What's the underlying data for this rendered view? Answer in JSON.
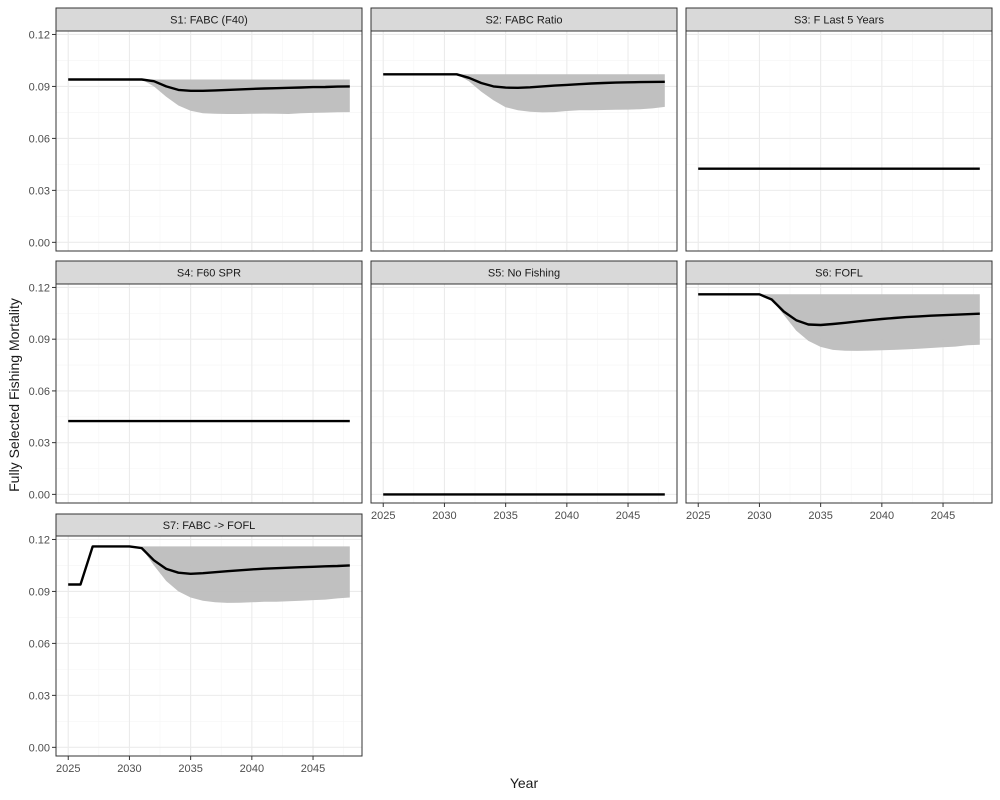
{
  "chart_data": {
    "type": "line",
    "xlabel": "Year",
    "ylabel": "Fully Selected Fishing Mortality",
    "xlim": [
      2024,
      2049
    ],
    "ylim": [
      -0.005,
      0.122
    ],
    "xticks": [
      2025,
      2030,
      2035,
      2040,
      2045
    ],
    "yticks": [
      0.0,
      0.03,
      0.06,
      0.09,
      0.12
    ],
    "ytick_labels": [
      "0.00",
      "0.03",
      "0.06",
      "0.09",
      "0.12"
    ],
    "grid": true,
    "colors": {
      "line": "#000000",
      "ribbon": "#bdbdbd",
      "strip": "#d9d9d9",
      "grid_major": "#ebebeb",
      "grid_minor": "#f5f5f5",
      "border": "#333333"
    },
    "x": [
      2025,
      2026,
      2027,
      2028,
      2029,
      2030,
      2031,
      2032,
      2033,
      2034,
      2035,
      2036,
      2037,
      2038,
      2039,
      2040,
      2041,
      2042,
      2043,
      2044,
      2045,
      2046,
      2047,
      2048
    ],
    "panels": [
      {
        "title": "S1: FABC (F40)",
        "y": [
          0.094,
          0.094,
          0.094,
          0.094,
          0.094,
          0.094,
          0.094,
          0.093,
          0.09,
          0.088,
          0.0875,
          0.0875,
          0.0877,
          0.088,
          0.0883,
          0.0886,
          0.0888,
          0.089,
          0.0892,
          0.0894,
          0.0896,
          0.0897,
          0.0899,
          0.09
        ],
        "lower": [
          0.094,
          0.094,
          0.094,
          0.094,
          0.094,
          0.094,
          0.094,
          0.09,
          0.084,
          0.079,
          0.076,
          0.0745,
          0.0742,
          0.0741,
          0.0741,
          0.0742,
          0.0743,
          0.0742,
          0.0741,
          0.0745,
          0.0747,
          0.0749,
          0.0751,
          0.0752
        ],
        "upper": [
          0.094,
          0.094,
          0.094,
          0.094,
          0.094,
          0.094,
          0.094,
          0.094,
          0.094,
          0.094,
          0.094,
          0.094,
          0.094,
          0.094,
          0.094,
          0.094,
          0.094,
          0.094,
          0.094,
          0.094,
          0.094,
          0.094,
          0.094,
          0.094
        ]
      },
      {
        "title": "S2: FABC Ratio",
        "y": [
          0.097,
          0.097,
          0.097,
          0.097,
          0.097,
          0.097,
          0.097,
          0.095,
          0.092,
          0.09,
          0.0893,
          0.0892,
          0.0895,
          0.09,
          0.0905,
          0.0909,
          0.0913,
          0.0917,
          0.092,
          0.0922,
          0.0924,
          0.0925,
          0.0926,
          0.0927
        ],
        "lower": [
          0.097,
          0.097,
          0.097,
          0.097,
          0.097,
          0.097,
          0.097,
          0.093,
          0.087,
          0.082,
          0.078,
          0.0762,
          0.0754,
          0.075,
          0.0752,
          0.0758,
          0.0763,
          0.0763,
          0.0764,
          0.0765,
          0.0766,
          0.0768,
          0.0773,
          0.0782
        ],
        "upper": [
          0.097,
          0.097,
          0.097,
          0.097,
          0.097,
          0.097,
          0.097,
          0.097,
          0.097,
          0.097,
          0.097,
          0.097,
          0.097,
          0.097,
          0.097,
          0.097,
          0.097,
          0.097,
          0.097,
          0.097,
          0.097,
          0.097,
          0.097,
          0.097
        ]
      },
      {
        "title": "S3: F Last 5 Years",
        "y": [
          0.0425,
          0.0425,
          0.0425,
          0.0425,
          0.0425,
          0.0425,
          0.0425,
          0.0425,
          0.0425,
          0.0425,
          0.0425,
          0.0425,
          0.0425,
          0.0425,
          0.0425,
          0.0425,
          0.0425,
          0.0425,
          0.0425,
          0.0425,
          0.0425,
          0.0425,
          0.0425,
          0.0425
        ]
      },
      {
        "title": "S4: F60 SPR",
        "y": [
          0.0425,
          0.0425,
          0.0425,
          0.0425,
          0.0425,
          0.0425,
          0.0425,
          0.0425,
          0.0425,
          0.0425,
          0.0425,
          0.0425,
          0.0425,
          0.0425,
          0.0425,
          0.0425,
          0.0425,
          0.0425,
          0.0425,
          0.0425,
          0.0425,
          0.0425,
          0.0425,
          0.0425
        ]
      },
      {
        "title": "S5: No Fishing",
        "y": [
          0,
          0,
          0,
          0,
          0,
          0,
          0,
          0,
          0,
          0,
          0,
          0,
          0,
          0,
          0,
          0,
          0,
          0,
          0,
          0,
          0,
          0,
          0,
          0
        ]
      },
      {
        "title": "S6: FOFL",
        "y": [
          0.116,
          0.116,
          0.116,
          0.116,
          0.116,
          0.116,
          0.113,
          0.106,
          0.101,
          0.0985,
          0.0982,
          0.0988,
          0.0995,
          0.1003,
          0.101,
          0.1017,
          0.1023,
          0.1028,
          0.1032,
          0.1036,
          0.1039,
          0.1042,
          0.1045,
          0.1048
        ],
        "lower": [
          0.116,
          0.116,
          0.116,
          0.116,
          0.116,
          0.116,
          0.113,
          0.104,
          0.095,
          0.089,
          0.0855,
          0.0838,
          0.0833,
          0.0832,
          0.0834,
          0.0836,
          0.0838,
          0.0841,
          0.0845,
          0.0849,
          0.0853,
          0.0857,
          0.0865,
          0.0868
        ],
        "upper": [
          0.116,
          0.116,
          0.116,
          0.116,
          0.116,
          0.116,
          0.116,
          0.116,
          0.116,
          0.116,
          0.116,
          0.116,
          0.116,
          0.116,
          0.116,
          0.116,
          0.116,
          0.116,
          0.116,
          0.116,
          0.116,
          0.116,
          0.116,
          0.116
        ]
      },
      {
        "title": "S7: FABC -> FOFL",
        "y": [
          0.094,
          0.094,
          0.116,
          0.116,
          0.116,
          0.116,
          0.115,
          0.108,
          0.103,
          0.1008,
          0.1002,
          0.1005,
          0.1011,
          0.1017,
          0.1022,
          0.1027,
          0.1031,
          0.1034,
          0.1037,
          0.104,
          0.1042,
          0.1045,
          0.1047,
          0.105
        ],
        "lower": [
          null,
          null,
          null,
          null,
          null,
          null,
          0.115,
          0.105,
          0.096,
          0.09,
          0.0865,
          0.0846,
          0.0838,
          0.0834,
          0.0835,
          0.0837,
          0.084,
          0.084,
          0.0843,
          0.0846,
          0.085,
          0.0853,
          0.086,
          0.0865
        ],
        "upper": [
          null,
          null,
          null,
          null,
          null,
          null,
          0.116,
          0.116,
          0.116,
          0.116,
          0.116,
          0.116,
          0.116,
          0.116,
          0.116,
          0.116,
          0.116,
          0.116,
          0.116,
          0.116,
          0.116,
          0.116,
          0.116,
          0.116
        ]
      }
    ]
  }
}
